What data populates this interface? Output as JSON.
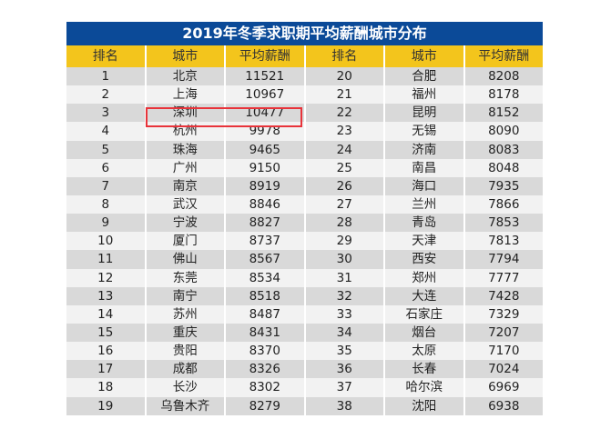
{
  "title": "2019年冬季求职期平均薪酬城市分布",
  "headers": [
    "排名",
    "城市",
    "平均薪酬",
    "排名",
    "城市",
    "平均薪酬"
  ],
  "highlight_color": "#e8333a",
  "colors": {
    "title_bg": "#0b4a98",
    "header_bg": "#f3c51c"
  },
  "highlighted_city": "深圳",
  "rows": [
    [
      "1",
      "北京",
      "11521",
      "20",
      "合肥",
      "8208"
    ],
    [
      "2",
      "上海",
      "10967",
      "21",
      "福州",
      "8178"
    ],
    [
      "3",
      "深圳",
      "10477",
      "22",
      "昆明",
      "8152"
    ],
    [
      "4",
      "杭州",
      "9978",
      "23",
      "无锡",
      "8090"
    ],
    [
      "5",
      "珠海",
      "9465",
      "24",
      "济南",
      "8083"
    ],
    [
      "6",
      "广州",
      "9150",
      "25",
      "南昌",
      "8048"
    ],
    [
      "7",
      "南京",
      "8919",
      "26",
      "海口",
      "7935"
    ],
    [
      "8",
      "武汉",
      "8846",
      "27",
      "兰州",
      "7866"
    ],
    [
      "9",
      "宁波",
      "8827",
      "28",
      "青岛",
      "7853"
    ],
    [
      "10",
      "厦门",
      "8737",
      "29",
      "天津",
      "7813"
    ],
    [
      "11",
      "佛山",
      "8567",
      "30",
      "西安",
      "7794"
    ],
    [
      "12",
      "东莞",
      "8534",
      "31",
      "郑州",
      "7777"
    ],
    [
      "13",
      "南宁",
      "8518",
      "32",
      "大连",
      "7428"
    ],
    [
      "14",
      "苏州",
      "8487",
      "33",
      "石家庄",
      "7329"
    ],
    [
      "15",
      "重庆",
      "8431",
      "34",
      "烟台",
      "7207"
    ],
    [
      "16",
      "贵阳",
      "8370",
      "35",
      "太原",
      "7170"
    ],
    [
      "17",
      "成都",
      "8326",
      "36",
      "长春",
      "7024"
    ],
    [
      "18",
      "长沙",
      "8302",
      "37",
      "哈尔滨",
      "6969"
    ],
    [
      "19",
      "乌鲁木齐",
      "8279",
      "38",
      "沈阳",
      "6938"
    ]
  ]
}
